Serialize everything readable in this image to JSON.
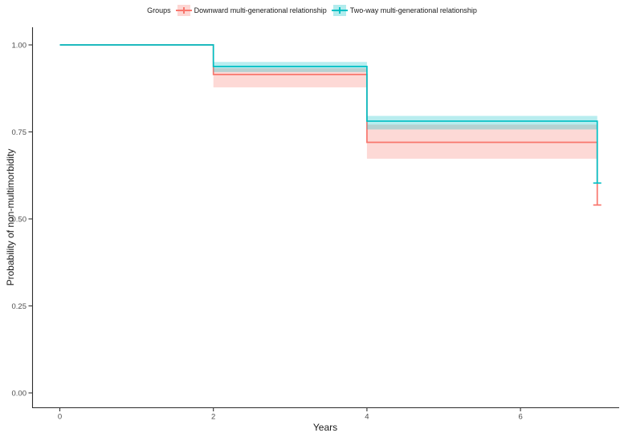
{
  "chart_data": {
    "type": "line",
    "subtype": "kaplan-meier-step-with-ci-bands",
    "title": "",
    "xlabel": "Years",
    "ylabel": "Probability of non-multimorbidity",
    "xlim": [
      -0.36,
      7.29
    ],
    "ylim": [
      -0.04,
      1.04
    ],
    "xticks": [
      0,
      2,
      4,
      6
    ],
    "xtick_labels": [
      "0",
      "2",
      "4",
      "6"
    ],
    "yticks": [
      0,
      0.25,
      0.5,
      0.75,
      1
    ],
    "ytick_labels": [
      "0.00",
      "0.25",
      "0.50",
      "0.75",
      "1.00"
    ],
    "grid": false,
    "legend_position": "top",
    "legend_title": "Groups",
    "series": [
      {
        "name": "Downward multi-generational relationship",
        "color": "#F8766D",
        "band_opacity": 0.28,
        "steps": [
          {
            "t": 0,
            "s": 1.0
          },
          {
            "t": 2,
            "s": 0.915
          },
          {
            "t": 4,
            "s": 0.72
          },
          {
            "t": 7,
            "s": 0.54
          }
        ],
        "ci": [
          {
            "t0": 2,
            "t1": 4,
            "lower": 0.878,
            "upper": 0.933
          },
          {
            "t0": 4,
            "t1": 7,
            "lower": 0.673,
            "upper": 0.771
          }
        ],
        "terminal_censor": {
          "t": 7,
          "s": 0.54
        }
      },
      {
        "name": "Two-way multi-generational relationship",
        "color": "#00BFC4",
        "band_opacity": 0.28,
        "steps": [
          {
            "t": 0,
            "s": 1.0
          },
          {
            "t": 2,
            "s": 0.938
          },
          {
            "t": 4,
            "s": 0.781
          },
          {
            "t": 7,
            "s": 0.603
          }
        ],
        "ci": [
          {
            "t0": 2,
            "t1": 4,
            "lower": 0.922,
            "upper": 0.951
          },
          {
            "t0": 4,
            "t1": 7,
            "lower": 0.757,
            "upper": 0.796
          }
        ],
        "terminal_censor": {
          "t": 7,
          "s": 0.603
        }
      }
    ]
  }
}
